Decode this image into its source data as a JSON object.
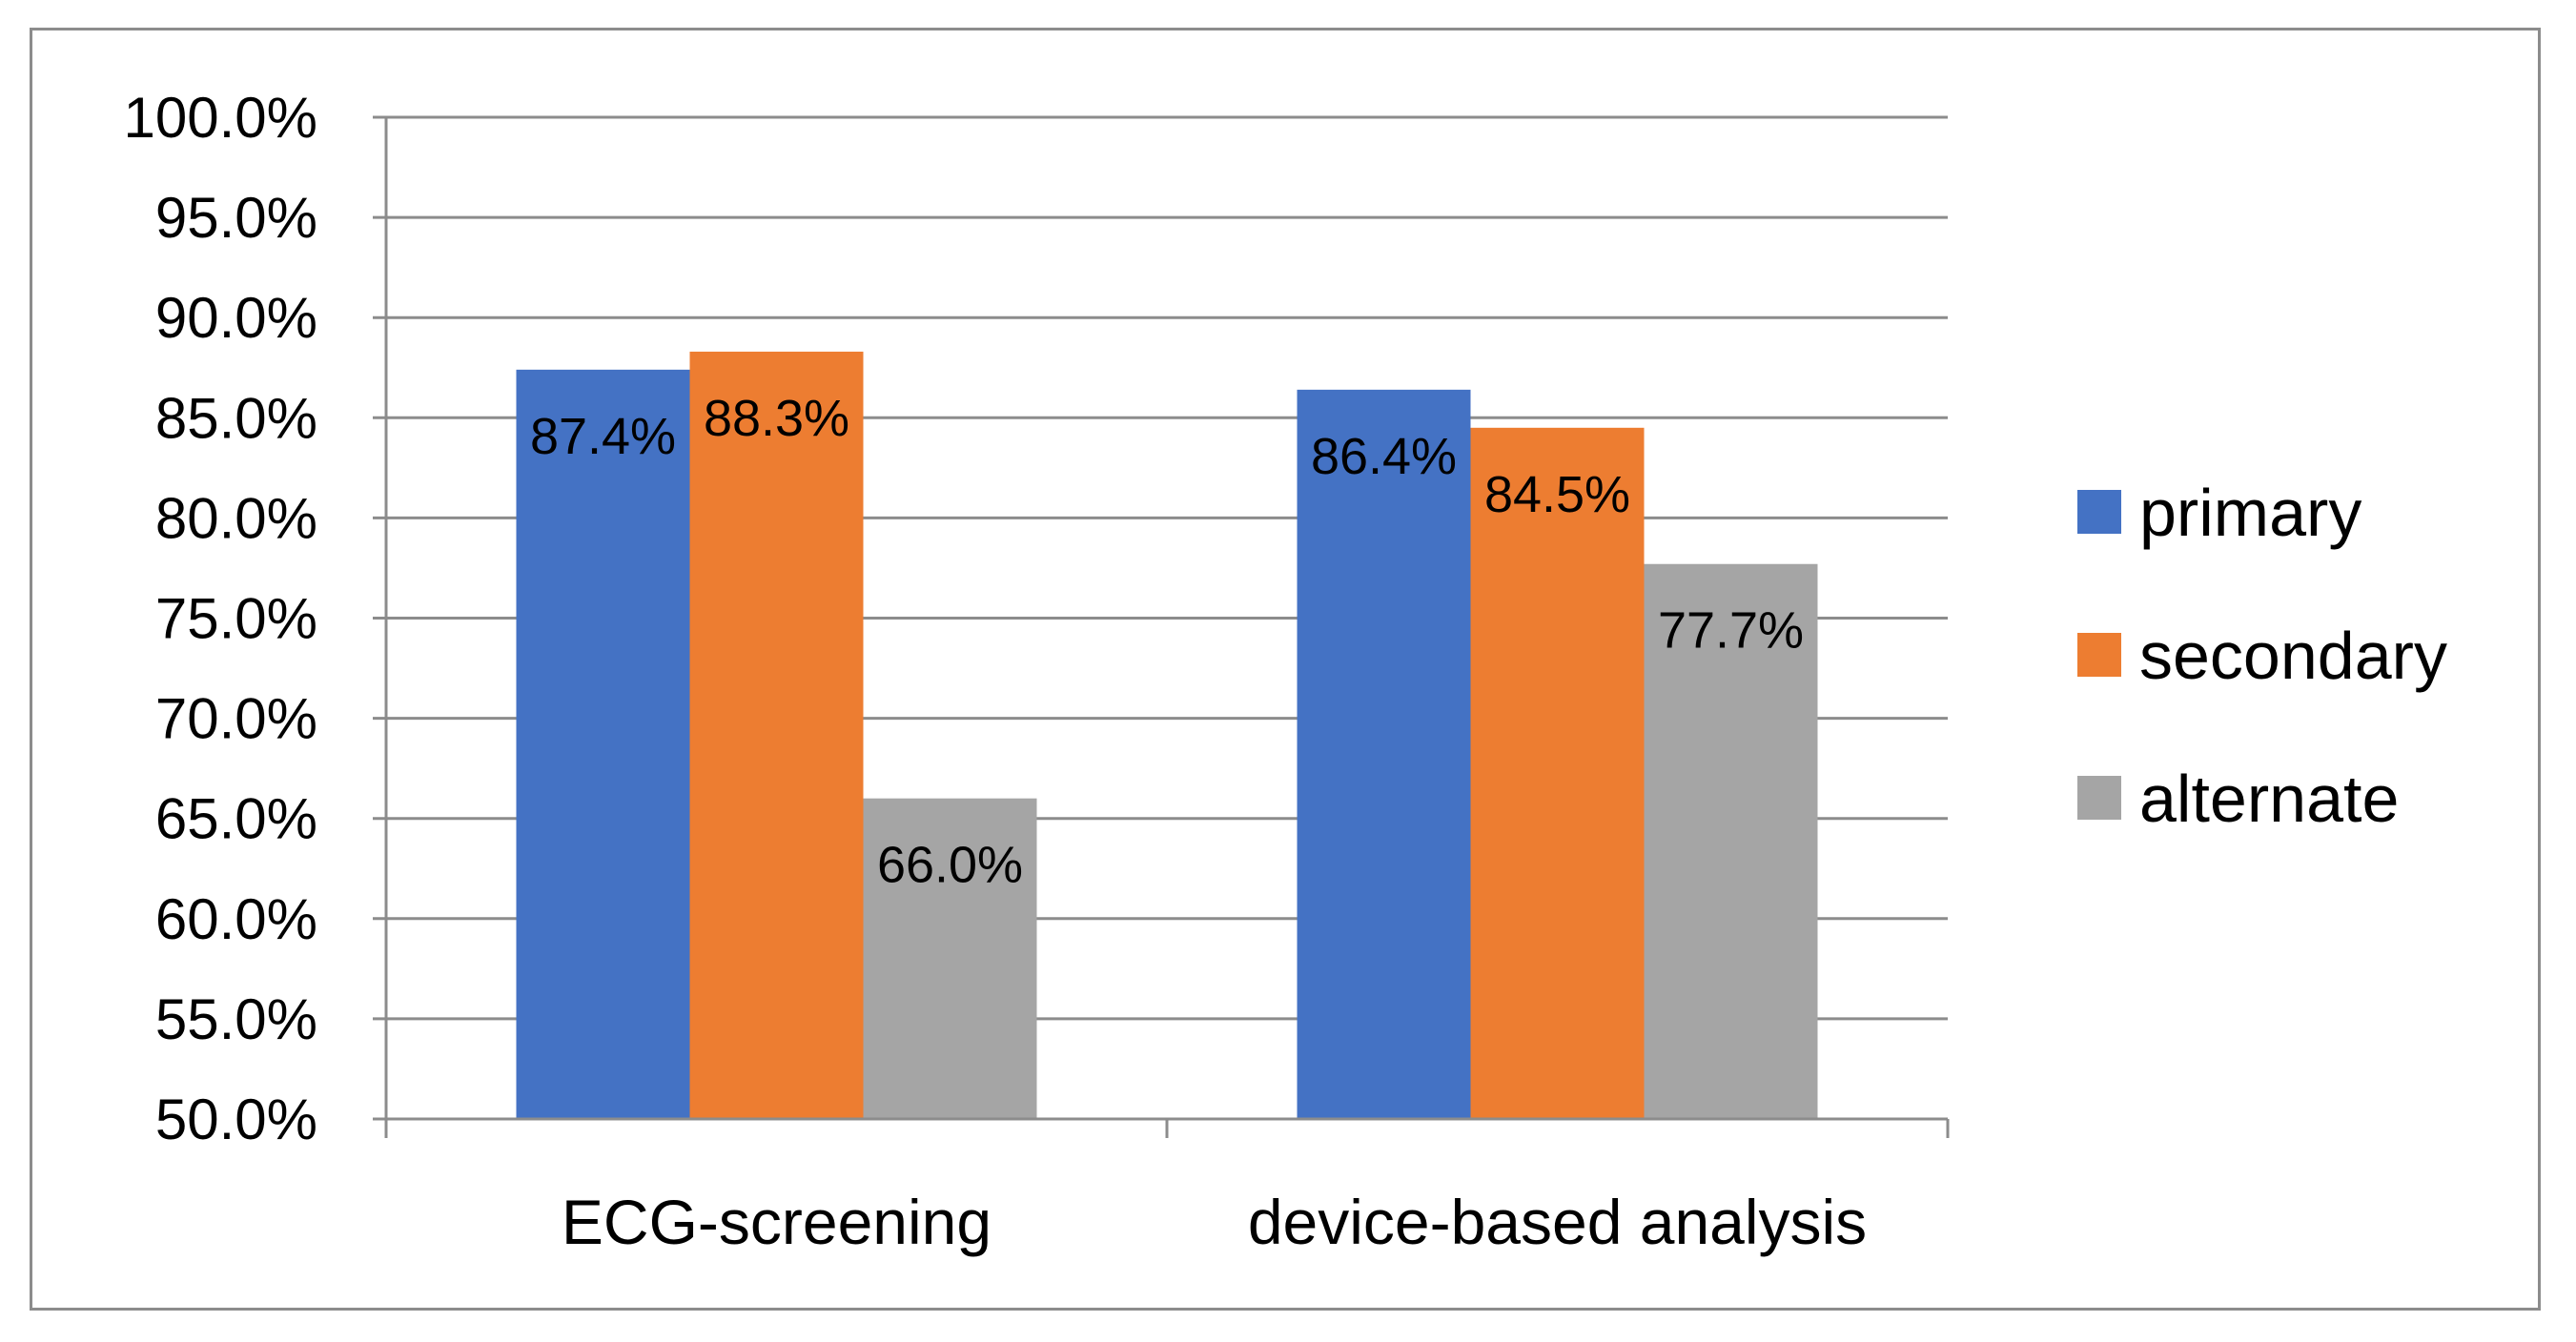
{
  "chart_data": {
    "type": "bar",
    "title": "",
    "xlabel": "",
    "ylabel": "",
    "ylim": [
      50,
      100
    ],
    "ytick_step": 5,
    "ytick_labels": [
      "50.0%",
      "55.0%",
      "60.0%",
      "65.0%",
      "70.0%",
      "75.0%",
      "80.0%",
      "85.0%",
      "90.0%",
      "95.0%",
      "100.0%"
    ],
    "categories": [
      "ECG-screening",
      "device-based analysis"
    ],
    "series": [
      {
        "name": "primary",
        "color": "#4472C4",
        "values": [
          87.4,
          86.4
        ],
        "labels": [
          "87.4%",
          "86.4%"
        ]
      },
      {
        "name": "secondary",
        "color": "#ED7D31",
        "values": [
          88.3,
          84.5
        ],
        "labels": [
          "88.3%",
          "84.5%"
        ]
      },
      {
        "name": "alternate",
        "color": "#A5A5A5",
        "values": [
          66.0,
          77.7
        ],
        "labels": [
          "66.0%",
          "77.7%"
        ]
      }
    ],
    "legend_position": "right",
    "grid": true
  }
}
